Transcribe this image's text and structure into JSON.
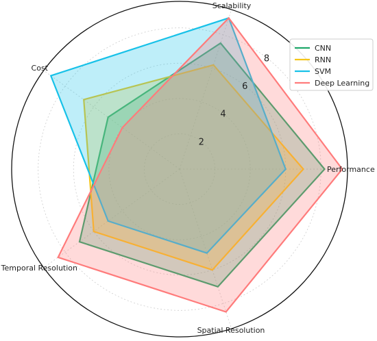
{
  "chart_data": {
    "type": "radar",
    "title": "",
    "axes": [
      "Performance",
      "Scalability",
      "Cost",
      "Temporal Resolution",
      "Spatial Resolution"
    ],
    "rlim": [
      0,
      9.5
    ],
    "radial_ticks": [
      2,
      4,
      6,
      8
    ],
    "grid": true,
    "legend_position": "top-right",
    "series": [
      {
        "name": "CNN",
        "color": "#1fa86a",
        "values": [
          8.2,
          7.5,
          5.0,
          7.0,
          7.0
        ]
      },
      {
        "name": "RNN",
        "color": "#f5c518",
        "values": [
          7.0,
          6.2,
          6.7,
          6.0,
          6.0
        ]
      },
      {
        "name": "SVM",
        "color": "#17c1e8",
        "values": [
          6.0,
          9.0,
          9.0,
          5.0,
          5.0
        ]
      },
      {
        "name": "Deep Learning",
        "color": "#ff7b7b",
        "values": [
          9.2,
          9.0,
          4.0,
          8.5,
          8.5
        ]
      }
    ]
  }
}
